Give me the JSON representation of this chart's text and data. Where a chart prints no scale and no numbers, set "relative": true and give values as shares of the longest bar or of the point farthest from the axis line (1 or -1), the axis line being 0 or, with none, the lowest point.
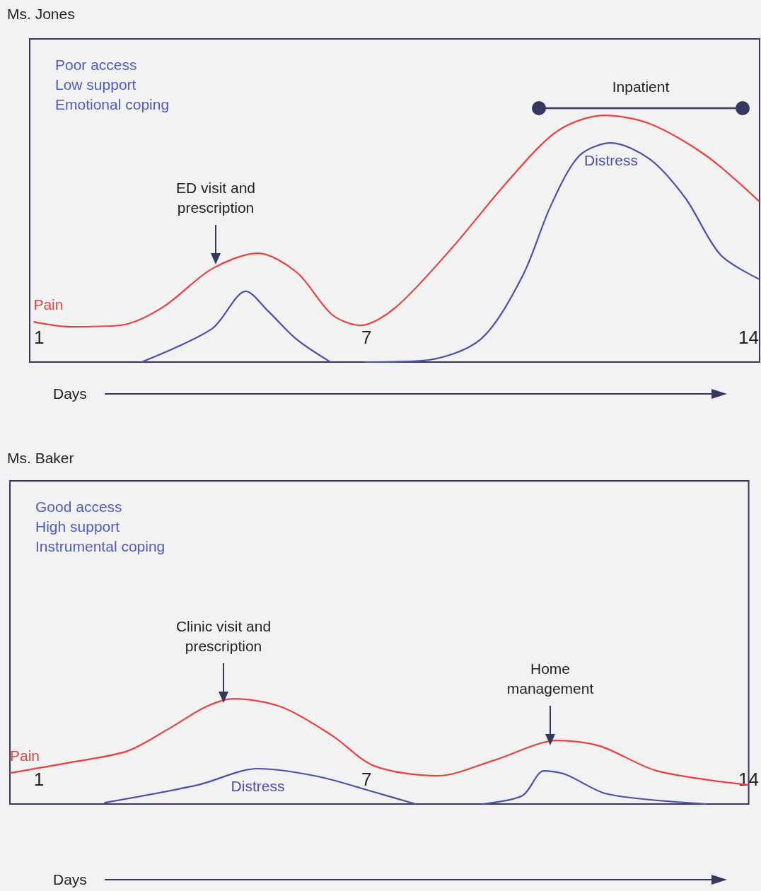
{
  "chart_data": [
    {
      "type": "line",
      "title": "Ms. Jones",
      "xlabel": "Days",
      "relative": true,
      "xlim": [
        0.83,
        14.2
      ],
      "xticks": [
        1,
        7,
        14
      ],
      "grid": false,
      "legend": false,
      "annotations": [
        "Poor access",
        "Low support",
        "Emotional coping",
        "ED visit and prescription",
        "Inpatient"
      ],
      "series": [
        {
          "name": "Pain",
          "color": "#e8413f",
          "x": [
            0.9,
            1.58,
            2.49,
            3.26,
            4.17,
            5.01,
            5.72,
            6.37,
            6.89,
            7.53,
            8.57,
            9.6,
            10.5,
            11.35,
            12.19,
            13.22,
            14.2
          ],
          "values": [
            0.163,
            0.143,
            0.149,
            0.221,
            0.378,
            0.441,
            0.364,
            0.192,
            0.149,
            0.221,
            0.464,
            0.736,
            0.937,
            1,
            0.966,
            0.837,
            0.65
          ]
        },
        {
          "name": "Distress",
          "color": "#4a4fb0",
          "x": [
            2.88,
            4.17,
            4.79,
            5.2,
            5.72,
            6.34,
            6.6,
            6.98,
            8.05,
            9.09,
            9.86,
            10.38,
            10.9,
            11.48,
            12.19,
            12.84,
            13.48,
            14.2
          ],
          "values": [
            0,
            0.135,
            0.287,
            0.206,
            0.092,
            0,
            null,
            0,
            0.006,
            0.092,
            0.35,
            0.636,
            0.837,
            0.888,
            0.822,
            0.665,
            0.436,
            0.335
          ]
        }
      ]
    },
    {
      "type": "line",
      "title": "Ms. Baker",
      "xlabel": "Days",
      "relative": true,
      "xlim": [
        0.47,
        14.0
      ],
      "xticks": [
        1,
        7,
        14
      ],
      "grid": false,
      "legend": false,
      "annotations": [
        "Good access",
        "High support",
        "Instrumental coping",
        "Clinic visit and prescription",
        "Home management"
      ],
      "series": [
        {
          "name": "Pain",
          "color": "#e8413f",
          "x": [
            0.47,
            1.58,
            2.62,
            3.39,
            4.04,
            4.56,
            5.46,
            6.37,
            7.14,
            8.31,
            9.34,
            10.5,
            11.28,
            12.32,
            14.0
          ],
          "values": [
            0.295,
            0.396,
            0.503,
            0.718,
            0.919,
            1,
            0.919,
            0.651,
            0.362,
            0.268,
            0.416,
            0.604,
            0.55,
            0.315,
            0.181
          ]
        },
        {
          "name": "Distress",
          "color": "#4a4fb0",
          "x": [
            2.2,
            3.91,
            5.01,
            6.11,
            7.14,
            7.9,
            8.2,
            9.12,
            9.86,
            10.25,
            10.64,
            11.42,
            13.23
          ],
          "values": [
            0.013,
            0.181,
            0.336,
            0.262,
            0.114,
            0,
            null,
            0,
            0.081,
            0.315,
            0.282,
            0.094,
            0
          ]
        }
      ]
    }
  ]
}
